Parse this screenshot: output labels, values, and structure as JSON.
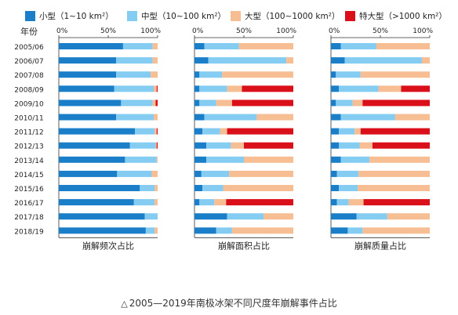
{
  "legend": [
    {
      "label": "小型（1~10 km²）",
      "color": "#1a7ec8"
    },
    {
      "label": "中型（10~100 km²）",
      "color": "#84ccf2"
    },
    {
      "label": "大型（100~1000 km²）",
      "color": "#f7be94"
    },
    {
      "label": "特大型（>1000 km²）",
      "color": "#d9101a"
    }
  ],
  "caption": "2005—2019年南极冰架不同尺度年崩解事件占比",
  "chart_data": {
    "type": "bar",
    "orientation": "horizontal",
    "stacked": true,
    "row_header": "年份",
    "categories": [
      "2005/06",
      "2006/07",
      "2007/08",
      "2008/09",
      "2009/10",
      "2010/11",
      "2011/12",
      "2012/13",
      "2013/14",
      "2014/15",
      "2015/16",
      "2016/17",
      "2017/18",
      "2018/19"
    ],
    "xlim": [
      0,
      100
    ],
    "tick_labels": [
      "0%",
      "50%",
      "100%"
    ],
    "panels": [
      {
        "xlabel": "崩解频次占比",
        "series": [
          {
            "values": [
              65,
              58,
              58,
              56,
              63,
              58,
              77,
              72,
              67,
              59,
              82,
              76,
              87,
              88
            ]
          },
          {
            "values": [
              30,
              37,
              35,
              40,
              32,
              38,
              20,
              26,
              32,
              35,
              15,
              21,
              13,
              9
            ]
          },
          {
            "values": [
              5,
              5,
              7,
              3,
              3,
              4,
              2,
              1,
              1,
              6,
              3,
              3,
              0,
              3
            ]
          },
          {
            "values": [
              0,
              0,
              0,
              1,
              2,
              0,
              1,
              1,
              0,
              0,
              0,
              0,
              0,
              0
            ]
          }
        ]
      },
      {
        "xlabel": "崩解面积占比",
        "series": [
          {
            "values": [
              10,
              14,
              5,
              5,
              5,
              10,
              8,
              12,
              12,
              7,
              8,
              5,
              33,
              22
            ]
          },
          {
            "values": [
              35,
              79,
              23,
              28,
              17,
              53,
              18,
              25,
              38,
              28,
              21,
              15,
              37,
              16
            ]
          },
          {
            "values": [
              55,
              7,
              72,
              15,
              16,
              37,
              7,
              13,
              50,
              65,
              71,
              12,
              30,
              62
            ]
          },
          {
            "values": [
              0,
              0,
              0,
              52,
              62,
              0,
              67,
              50,
              0,
              0,
              0,
              68,
              0,
              0
            ]
          }
        ]
      },
      {
        "xlabel": "崩解质量占比",
        "series": [
          {
            "values": [
              10,
              14,
              5,
              8,
              5,
              10,
              8,
              8,
              10,
              6,
              8,
              6,
              26,
              17
            ]
          },
          {
            "values": [
              36,
              78,
              25,
              40,
              17,
              55,
              16,
              21,
              29,
              22,
              19,
              12,
              31,
              15
            ]
          },
          {
            "values": [
              54,
              8,
              70,
              23,
              10,
              35,
              6,
              13,
              61,
              72,
              73,
              15,
              43,
              68
            ]
          },
          {
            "values": [
              0,
              0,
              0,
              29,
              68,
              0,
              70,
              58,
              0,
              0,
              0,
              67,
              0,
              0
            ]
          }
        ]
      }
    ]
  }
}
